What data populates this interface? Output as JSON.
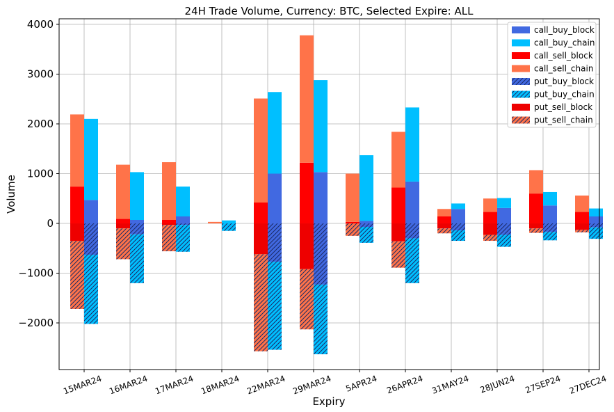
{
  "chart_data": {
    "type": "bar",
    "title": "24H Trade Volume, Currency: BTC, Selected Expire: ALL",
    "xlabel": "Expiry",
    "ylabel": "Volume",
    "categories": [
      "15MAR24",
      "16MAR24",
      "17MAR24",
      "18MAR24",
      "22MAR24",
      "29MAR24",
      "5APR24",
      "26APR24",
      "31MAY24",
      "28JUN24",
      "27SEP24",
      "27DEC24"
    ],
    "ylim": [
      -2937,
      4112
    ],
    "yticks": [
      {
        "value": -2000,
        "label": "−2000"
      },
      {
        "value": -1000,
        "label": "−1000"
      },
      0,
      1000,
      2000,
      3000,
      4000
    ],
    "grid": true,
    "legend": "upper right",
    "series": [
      {
        "name": "call_buy_block",
        "color": "#4169e1",
        "stack": "buy",
        "hatch": false,
        "values": [
          470,
          70,
          140,
          0,
          1000,
          1030,
          50,
          840,
          290,
          310,
          360,
          140
        ]
      },
      {
        "name": "call_buy_chain",
        "color": "#00bfff",
        "stack": "buy",
        "hatch": false,
        "values": [
          1630,
          960,
          600,
          60,
          1640,
          1850,
          1320,
          1490,
          110,
          200,
          270,
          160
        ]
      },
      {
        "name": "call_sell_block",
        "color": "#ff0000",
        "stack": "sell",
        "hatch": false,
        "values": [
          740,
          90,
          70,
          0,
          420,
          1220,
          30,
          720,
          140,
          230,
          600,
          230
        ]
      },
      {
        "name": "call_sell_chain",
        "color": "#ff7349",
        "stack": "sell",
        "hatch": false,
        "values": [
          1450,
          1090,
          1160,
          30,
          2090,
          2560,
          970,
          1120,
          150,
          270,
          470,
          330
        ]
      },
      {
        "name": "put_buy_block",
        "color": "#4169e1",
        "stack": "buy",
        "hatch": true,
        "values": [
          -630,
          -220,
          -30,
          0,
          -770,
          -1230,
          -70,
          -300,
          -140,
          -230,
          -170,
          -80
        ]
      },
      {
        "name": "put_buy_chain",
        "color": "#00bfff",
        "stack": "buy",
        "hatch": true,
        "values": [
          -1390,
          -980,
          -540,
          -150,
          -1770,
          -1400,
          -320,
          -900,
          -210,
          -240,
          -170,
          -230
        ]
      },
      {
        "name": "put_sell_block",
        "color": "#ee0000",
        "stack": "sell",
        "hatch": false,
        "values": [
          -350,
          -100,
          -30,
          0,
          -620,
          -920,
          0,
          -360,
          -100,
          -230,
          -100,
          -130
        ]
      },
      {
        "name": "put_sell_chain",
        "color": "#ff7349",
        "stack": "sell",
        "hatch": true,
        "values": [
          -1370,
          -620,
          -530,
          0,
          -1950,
          -1210,
          -250,
          -530,
          -100,
          -120,
          -90,
          -50
        ]
      }
    ]
  }
}
